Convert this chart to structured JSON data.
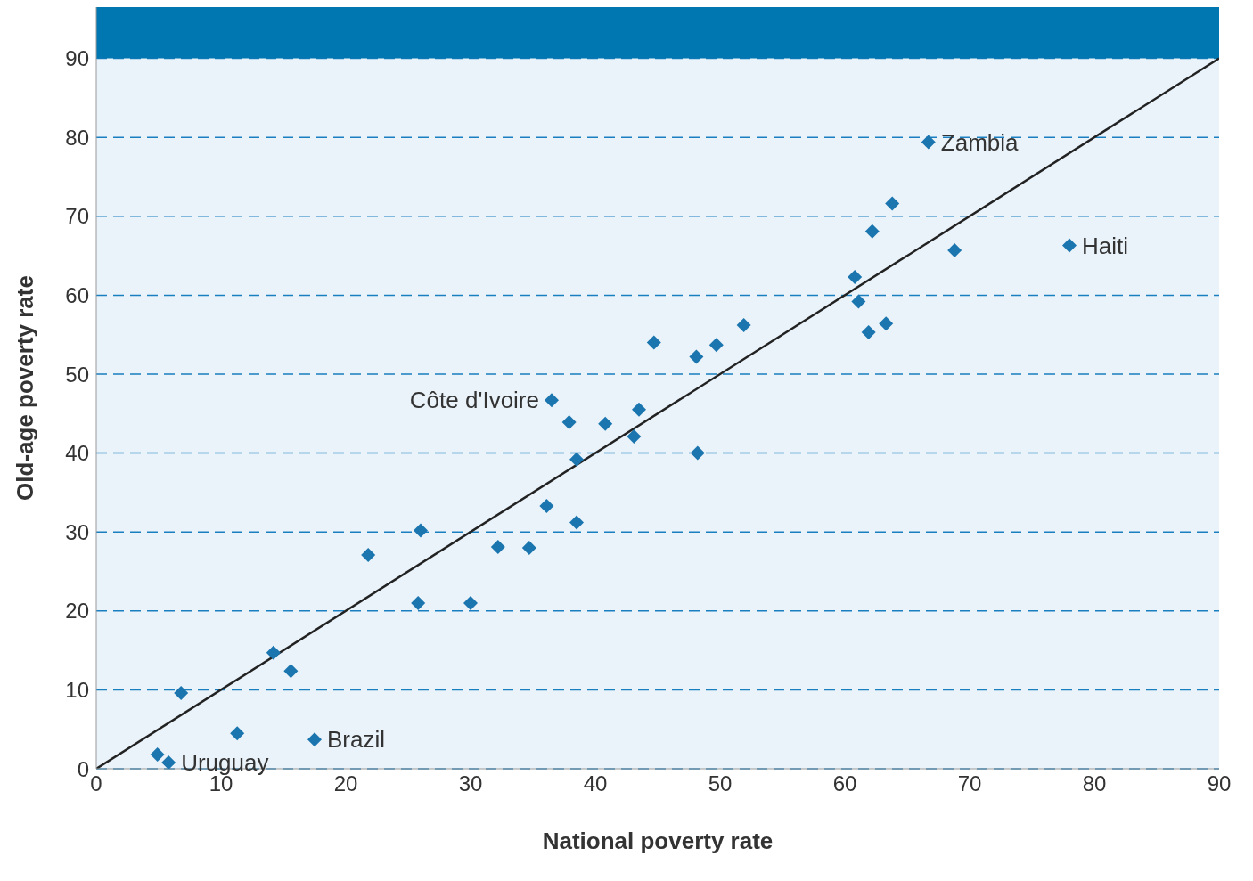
{
  "chart_data": {
    "type": "scatter",
    "xlabel": "National poverty rate",
    "ylabel": "Old-age poverty rate",
    "xlim": [
      0,
      90
    ],
    "ylim": [
      0,
      96.5
    ],
    "xticks": [
      0,
      10,
      20,
      30,
      40,
      50,
      60,
      70,
      80,
      90
    ],
    "yticks": [
      0,
      10,
      20,
      30,
      40,
      50,
      60,
      70,
      80,
      90
    ],
    "grid": "y",
    "legend": false,
    "series": [
      {
        "marker": "diamond",
        "color": "#1b75ae",
        "x": [
          4.9,
          5.8,
          6.8,
          11.3,
          14.2,
          15.6,
          17.5,
          21.8,
          25.8,
          26.0,
          30.0,
          32.2,
          34.7,
          36.1,
          36.5,
          37.9,
          38.5,
          38.5,
          40.8,
          43.1,
          43.5,
          44.7,
          48.1,
          48.2,
          49.7,
          51.9,
          60.8,
          61.1,
          61.9,
          62.2,
          63.3,
          63.8,
          66.7,
          68.8,
          78.0
        ],
        "values": [
          1.8,
          0.8,
          9.6,
          4.5,
          14.7,
          12.4,
          3.7,
          27.1,
          21.0,
          30.2,
          21.0,
          28.1,
          28.0,
          33.3,
          46.7,
          43.9,
          31.2,
          39.2,
          43.7,
          42.1,
          45.5,
          54.0,
          52.2,
          40.0,
          53.7,
          56.2,
          62.3,
          59.2,
          55.3,
          68.1,
          56.4,
          71.6,
          79.4,
          65.7,
          66.3
        ]
      },
      {
        "type": "line",
        "color": "#222222",
        "x": [
          0,
          90
        ],
        "values": [
          0,
          90
        ]
      }
    ],
    "bands": [
      {
        "axis": "y",
        "from": 90,
        "to": 96.5,
        "color": "#0077b0"
      }
    ],
    "annotations": [
      {
        "text": "Zambia",
        "x": 66.7,
        "y": 79.4
      },
      {
        "text": "Haiti",
        "x": 78.0,
        "y": 66.3
      },
      {
        "text": "Côte d'Ivoire",
        "x": 36.5,
        "y": 46.7
      },
      {
        "text": "Uruguay",
        "x": 5.8,
        "y": 0.8
      },
      {
        "text": "Brazil",
        "x": 17.5,
        "y": 3.7
      }
    ]
  }
}
